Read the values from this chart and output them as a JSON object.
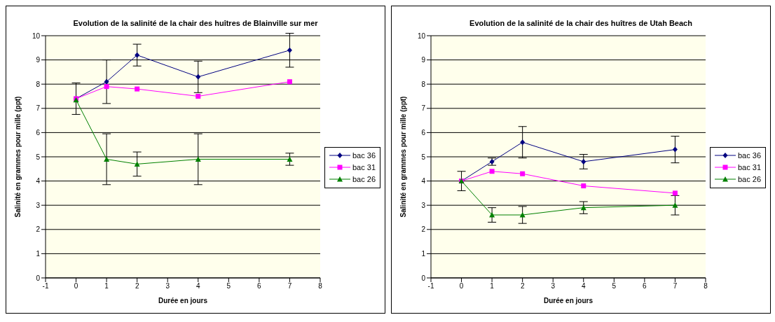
{
  "chart_data": [
    {
      "type": "line",
      "title": "Evolution de la salinité de la chair des huîtres de Blainville sur mer",
      "xlabel": "Durée en jours",
      "ylabel": "Salinité en grammes pour mille  (ppt)",
      "x": [
        0,
        1,
        2,
        4,
        7
      ],
      "xlim": [
        -1,
        8
      ],
      "xticks": [
        -1,
        0,
        1,
        2,
        3,
        4,
        5,
        6,
        7,
        8
      ],
      "ylim": [
        0,
        10
      ],
      "yticks": [
        0,
        1,
        2,
        3,
        4,
        5,
        6,
        7,
        8,
        9,
        10
      ],
      "grid": "y",
      "legend": "right",
      "series": [
        {
          "name": "bac 36",
          "color": "#000080",
          "marker": "diamond",
          "values": [
            7.4,
            8.1,
            9.2,
            8.3,
            9.4
          ],
          "errors": [
            [
              6.75,
              8.05
            ],
            [
              7.2,
              9.0
            ],
            [
              8.75,
              9.65
            ],
            [
              7.65,
              8.95
            ],
            [
              8.7,
              10.1
            ]
          ]
        },
        {
          "name": "bac 31",
          "color": "#ff00ff",
          "marker": "square",
          "values": [
            7.4,
            7.9,
            7.8,
            7.5,
            8.1
          ]
        },
        {
          "name": "bac 26",
          "color": "#008000",
          "marker": "triangle",
          "values": [
            7.35,
            4.9,
            4.7,
            4.9,
            4.9
          ],
          "errors": [
            null,
            [
              3.85,
              5.95
            ],
            [
              4.2,
              5.2
            ],
            [
              3.85,
              5.95
            ],
            [
              4.65,
              5.15
            ]
          ]
        }
      ]
    },
    {
      "type": "line",
      "title": "Evolution de la salinité de la chair des huîtres de Utah Beach",
      "xlabel": "Durée en jours",
      "ylabel": "Salinité en grammes pour mille  (ppt)",
      "x": [
        0,
        1,
        2,
        4,
        7
      ],
      "xlim": [
        -1,
        8
      ],
      "xticks": [
        -1,
        0,
        1,
        2,
        3,
        4,
        5,
        6,
        7,
        8
      ],
      "ylim": [
        0,
        10
      ],
      "yticks": [
        0,
        1,
        2,
        3,
        4,
        5,
        6,
        7,
        8,
        9,
        10
      ],
      "grid": "y",
      "legend": "right",
      "series": [
        {
          "name": "bac 36",
          "color": "#000080",
          "marker": "diamond",
          "values": [
            4.0,
            4.8,
            5.6,
            4.8,
            5.3
          ],
          "errors": [
            [
              3.6,
              4.4
            ],
            [
              4.65,
              4.95
            ],
            [
              4.95,
              6.25
            ],
            [
              4.5,
              5.1
            ],
            [
              4.75,
              5.85
            ]
          ]
        },
        {
          "name": "bac 31",
          "color": "#ff00ff",
          "marker": "square",
          "values": [
            4.0,
            4.4,
            4.3,
            3.8,
            3.5
          ]
        },
        {
          "name": "bac 26",
          "color": "#008000",
          "marker": "triangle",
          "values": [
            4.0,
            2.6,
            2.6,
            2.9,
            3.0
          ],
          "errors": [
            null,
            [
              2.3,
              2.9
            ],
            [
              2.25,
              2.95
            ],
            [
              2.65,
              3.15
            ],
            [
              2.6,
              3.4
            ]
          ]
        }
      ]
    }
  ]
}
